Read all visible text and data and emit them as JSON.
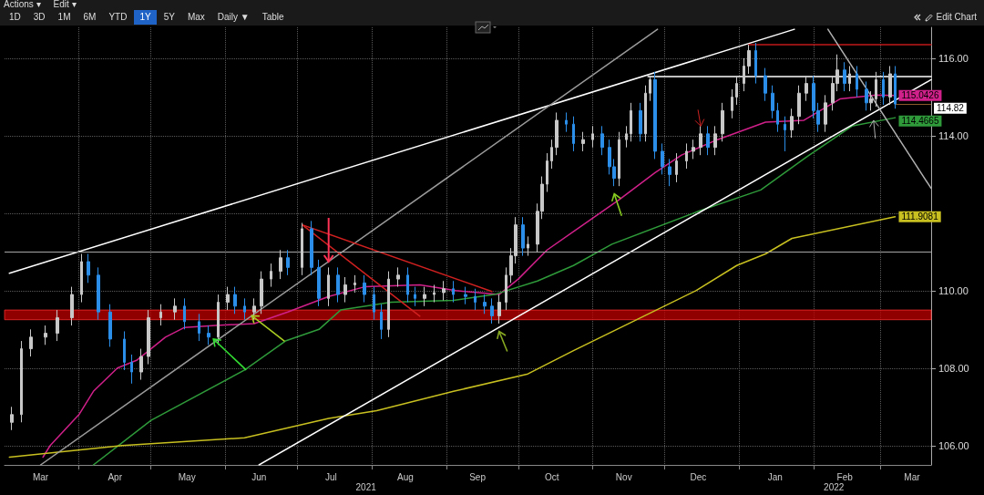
{
  "chart_data": {
    "type": "candlestick",
    "annotations": [
      "Actions ▾",
      "Edit ▾",
      "1D",
      "3D",
      "1M",
      "6M",
      "YTD",
      "1Y",
      "5Y",
      "Max",
      "Daily ▼",
      "Table",
      "Edit Chart",
      "2021",
      "2022"
    ],
    "xlim": [
      "2021-03-01",
      "2022-03-22"
    ],
    "xticks": [
      {
        "value": "2021-03-16",
        "label": "Mar"
      },
      {
        "value": "2021-04-01",
        "label": null
      },
      {
        "value": "2021-04-16",
        "label": "Apr"
      },
      {
        "value": "2021-05-01",
        "label": null
      },
      {
        "value": "2021-05-16",
        "label": "May"
      },
      {
        "value": "2021-06-01",
        "label": null
      },
      {
        "value": "2021-06-15",
        "label": "Jun"
      },
      {
        "value": "2021-07-01",
        "label": null
      },
      {
        "value": "2021-07-15",
        "label": "Jul"
      },
      {
        "value": "2021-08-01",
        "label": null
      },
      {
        "value": "2021-08-15",
        "label": "Aug"
      },
      {
        "value": "2021-09-01",
        "label": null
      },
      {
        "value": "2021-09-14",
        "label": "Sep"
      },
      {
        "value": "2021-10-01",
        "label": null
      },
      {
        "value": "2021-10-15",
        "label": "Oct"
      },
      {
        "value": "2021-11-01",
        "label": null
      },
      {
        "value": "2021-11-14",
        "label": "Nov"
      },
      {
        "value": "2021-12-01",
        "label": null
      },
      {
        "value": "2021-12-15",
        "label": "Dec"
      },
      {
        "value": "2022-01-01",
        "label": null
      },
      {
        "value": "2022-01-16",
        "label": "Jan"
      },
      {
        "value": "2022-02-01",
        "label": null
      },
      {
        "value": "2022-02-14",
        "label": "Feb"
      },
      {
        "value": "2022-03-01",
        "label": null
      },
      {
        "value": "2022-03-14",
        "label": "Mar"
      }
    ],
    "ylim": [
      105.5,
      116.8
    ],
    "yticks": [
      {
        "value": 106,
        "label": "106.00"
      },
      {
        "value": 108,
        "label": "108.00"
      },
      {
        "value": 110,
        "label": "110.00"
      },
      {
        "value": 112,
        "label": null
      },
      {
        "value": 114,
        "label": "114.00"
      },
      {
        "value": 116,
        "label": "116.00"
      }
    ],
    "grid": true,
    "marker": "none",
    "ref_lines": [
      {
        "axis": "y",
        "value": 111,
        "color": "#a6a6a6"
      },
      {
        "axis": "y",
        "value": 114.82,
        "label": "114.82",
        "color": "#8b5a2b"
      }
    ],
    "bands": [
      {
        "axis": "y",
        "from": 109.25,
        "to": 109.5,
        "color": "#c00000"
      }
    ],
    "series": [
      {
        "type": "candlestick",
        "x": [
          "2021-03-04",
          "2021-03-08",
          "2021-03-12",
          "2021-03-18",
          "2021-03-23",
          "2021-03-29",
          "2021-04-02",
          "2021-04-05",
          "2021-04-09",
          "2021-04-14",
          "2021-04-20",
          "2021-04-23",
          "2021-04-27",
          "2021-04-30",
          "2021-05-05",
          "2021-05-11",
          "2021-05-15",
          "2021-05-21",
          "2021-05-25",
          "2021-05-29",
          "2021-06-02",
          "2021-06-05",
          "2021-06-09",
          "2021-06-13",
          "2021-06-16",
          "2021-06-20",
          "2021-06-24",
          "2021-06-27",
          "2021-07-03",
          "2021-07-07",
          "2021-07-10",
          "2021-07-14",
          "2021-07-18",
          "2021-07-21",
          "2021-07-25",
          "2021-07-29",
          "2021-08-02",
          "2021-08-05",
          "2021-08-08",
          "2021-08-12",
          "2021-08-16",
          "2021-08-19",
          "2021-08-23",
          "2021-08-27",
          "2021-08-31",
          "2021-09-04",
          "2021-09-09",
          "2021-09-13",
          "2021-09-17",
          "2021-09-20",
          "2021-09-23",
          "2021-09-26",
          "2021-09-28",
          "2021-09-30",
          "2021-10-03",
          "2021-10-05",
          "2021-10-09",
          "2021-10-11",
          "2021-10-13",
          "2021-10-15",
          "2021-10-17",
          "2021-10-21",
          "2021-10-24",
          "2021-10-28",
          "2021-11-01",
          "2021-11-05",
          "2021-11-08",
          "2021-11-10",
          "2021-11-12",
          "2021-11-15",
          "2021-11-17",
          "2021-11-21",
          "2021-11-23",
          "2021-11-25",
          "2021-11-27",
          "2021-11-30",
          "2021-12-03",
          "2021-12-06",
          "2021-12-10",
          "2021-12-13",
          "2021-12-16",
          "2021-12-19",
          "2021-12-22",
          "2021-12-25",
          "2021-12-29",
          "2021-12-31",
          "2022-01-03",
          "2022-01-05",
          "2022-01-08",
          "2022-01-12",
          "2022-01-15",
          "2022-01-17",
          "2022-01-20",
          "2022-01-23",
          "2022-01-26",
          "2022-01-29",
          "2022-02-01",
          "2022-02-03",
          "2022-02-06",
          "2022-02-09",
          "2022-02-11",
          "2022-02-14",
          "2022-02-16",
          "2022-02-19",
          "2022-02-23",
          "2022-02-25",
          "2022-02-27",
          "2022-03-02",
          "2022-03-05",
          "2022-03-07"
        ],
        "ohlc": [
          [
            106.6,
            107.0,
            106.4,
            106.8
          ],
          [
            106.8,
            108.7,
            106.6,
            108.5
          ],
          [
            108.5,
            109.0,
            108.3,
            108.8
          ],
          [
            108.8,
            109.1,
            108.6,
            108.9
          ],
          [
            108.9,
            109.5,
            108.7,
            109.3
          ],
          [
            109.3,
            110.1,
            109.1,
            109.9
          ],
          [
            109.9,
            110.95,
            109.7,
            110.75
          ],
          [
            110.75,
            110.95,
            110.2,
            110.4
          ],
          [
            110.4,
            110.6,
            109.25,
            109.45
          ],
          [
            109.45,
            109.65,
            108.55,
            108.75
          ],
          [
            108.75,
            108.95,
            107.95,
            108.15
          ],
          [
            108.15,
            108.35,
            107.6,
            107.9
          ],
          [
            107.9,
            108.5,
            107.7,
            108.3
          ],
          [
            108.3,
            109.5,
            108.1,
            109.3
          ],
          [
            109.3,
            109.65,
            109.1,
            109.45
          ],
          [
            109.45,
            109.8,
            109.25,
            109.6
          ],
          [
            109.6,
            109.8,
            109.0,
            109.2
          ],
          [
            109.2,
            109.4,
            108.7,
            108.9
          ],
          [
            108.9,
            109.1,
            108.6,
            108.8
          ],
          [
            108.8,
            109.9,
            108.6,
            109.7
          ],
          [
            109.7,
            110.1,
            109.5,
            109.9
          ],
          [
            109.9,
            110.1,
            109.4,
            109.6
          ],
          [
            109.6,
            109.8,
            109.25,
            109.45
          ],
          [
            109.45,
            109.8,
            109.25,
            109.6
          ],
          [
            109.6,
            110.5,
            109.4,
            110.3
          ],
          [
            110.3,
            110.7,
            110.1,
            110.5
          ],
          [
            110.5,
            111.05,
            110.3,
            110.85
          ],
          [
            110.85,
            111.05,
            110.4,
            110.6
          ],
          [
            110.6,
            111.75,
            110.4,
            111.6
          ],
          [
            111.6,
            111.8,
            110.4,
            110.6
          ],
          [
            110.6,
            110.8,
            109.6,
            109.8
          ],
          [
            109.8,
            110.6,
            109.6,
            110.4
          ],
          [
            110.4,
            110.6,
            109.7,
            109.9
          ],
          [
            109.9,
            110.35,
            109.7,
            110.15
          ],
          [
            110.15,
            110.4,
            109.95,
            110.2
          ],
          [
            110.2,
            110.4,
            109.7,
            109.9
          ],
          [
            109.9,
            110.1,
            109.25,
            109.45
          ],
          [
            109.45,
            109.65,
            108.75,
            109.0
          ],
          [
            109.0,
            110.5,
            108.8,
            110.3
          ],
          [
            110.3,
            110.6,
            110.1,
            110.4
          ],
          [
            110.4,
            110.6,
            109.7,
            109.9
          ],
          [
            109.9,
            110.1,
            109.6,
            109.8
          ],
          [
            109.8,
            110.1,
            109.6,
            109.9
          ],
          [
            109.9,
            110.15,
            109.7,
            109.95
          ],
          [
            109.95,
            110.25,
            109.75,
            110.05
          ],
          [
            110.05,
            110.25,
            109.7,
            109.9
          ],
          [
            109.9,
            110.1,
            109.65,
            109.85
          ],
          [
            109.85,
            110.05,
            109.5,
            109.7
          ],
          [
            109.7,
            109.9,
            109.4,
            109.6
          ],
          [
            109.6,
            109.8,
            109.15,
            109.35
          ],
          [
            109.35,
            109.9,
            109.15,
            109.7
          ],
          [
            109.7,
            110.6,
            109.5,
            110.4
          ],
          [
            110.4,
            111.1,
            110.2,
            110.9
          ],
          [
            110.9,
            111.9,
            110.7,
            111.7
          ],
          [
            111.7,
            111.9,
            110.9,
            111.1
          ],
          [
            111.1,
            111.4,
            110.9,
            111.2
          ],
          [
            111.2,
            112.25,
            111.0,
            112.05
          ],
          [
            112.05,
            112.95,
            111.85,
            112.75
          ],
          [
            112.75,
            113.55,
            112.55,
            113.35
          ],
          [
            113.35,
            113.9,
            113.15,
            113.7
          ],
          [
            113.7,
            114.6,
            113.5,
            114.4
          ],
          [
            114.4,
            114.6,
            114.1,
            114.3
          ],
          [
            114.3,
            114.5,
            113.6,
            113.8
          ],
          [
            113.8,
            114.1,
            113.6,
            113.9
          ],
          [
            113.9,
            114.25,
            113.7,
            114.05
          ],
          [
            114.05,
            114.25,
            113.5,
            113.7
          ],
          [
            113.7,
            113.9,
            113.0,
            113.2
          ],
          [
            113.2,
            113.4,
            112.7,
            112.9
          ],
          [
            112.9,
            114.1,
            112.7,
            113.9
          ],
          [
            113.9,
            114.25,
            113.7,
            114.05
          ],
          [
            114.05,
            114.85,
            113.85,
            114.65
          ],
          [
            114.65,
            114.85,
            113.85,
            114.05
          ],
          [
            114.05,
            115.3,
            113.85,
            115.1
          ],
          [
            115.1,
            115.55,
            114.9,
            115.45
          ],
          [
            115.45,
            115.65,
            113.4,
            113.6
          ],
          [
            113.6,
            113.8,
            113.0,
            113.2
          ],
          [
            113.2,
            113.4,
            112.7,
            113.0
          ],
          [
            113.0,
            113.55,
            112.8,
            113.35
          ],
          [
            113.35,
            113.8,
            113.15,
            113.6
          ],
          [
            113.6,
            113.9,
            113.4,
            113.7
          ],
          [
            113.7,
            114.25,
            113.5,
            114.05
          ],
          [
            114.05,
            114.25,
            113.5,
            113.7
          ],
          [
            113.7,
            114.25,
            113.5,
            114.05
          ],
          [
            114.05,
            114.85,
            113.85,
            114.65
          ],
          [
            114.65,
            115.2,
            114.45,
            115.0
          ],
          [
            115.0,
            115.55,
            114.8,
            115.35
          ],
          [
            115.35,
            116.0,
            115.15,
            115.8
          ],
          [
            115.8,
            116.35,
            115.6,
            116.2
          ],
          [
            116.2,
            116.4,
            115.35,
            115.55
          ],
          [
            115.55,
            115.75,
            114.9,
            115.1
          ],
          [
            115.1,
            115.3,
            114.45,
            114.65
          ],
          [
            114.65,
            114.85,
            114.1,
            114.3
          ],
          [
            114.3,
            114.5,
            113.6,
            114.15
          ],
          [
            114.15,
            114.7,
            113.95,
            114.5
          ],
          [
            114.5,
            115.3,
            114.3,
            115.1
          ],
          [
            115.1,
            115.55,
            114.9,
            115.35
          ],
          [
            115.35,
            115.55,
            114.45,
            114.65
          ],
          [
            114.65,
            114.85,
            114.1,
            114.3
          ],
          [
            114.3,
            115.05,
            114.1,
            114.85
          ],
          [
            114.85,
            115.55,
            114.65,
            115.35
          ],
          [
            115.35,
            116.1,
            115.15,
            115.7
          ],
          [
            115.7,
            115.9,
            115.15,
            115.35
          ],
          [
            115.35,
            115.8,
            115.15,
            115.6
          ],
          [
            115.6,
            115.8,
            115.0,
            115.2
          ],
          [
            115.2,
            115.4,
            114.65,
            114.85
          ],
          [
            114.85,
            115.15,
            114.65,
            114.95
          ],
          [
            114.95,
            115.65,
            114.75,
            115.45
          ],
          [
            115.45,
            115.65,
            114.8,
            115.0
          ],
          [
            115.0,
            115.8,
            114.8,
            115.6
          ],
          [
            115.6,
            115.8,
            114.7,
            114.82
          ]
        ],
        "colors": [
          "#c8c8c8",
          "#c8c8c8",
          "#c8c8c8",
          "#c8c8c8",
          "#c8c8c8",
          "#c8c8c8",
          "#c8c8c8",
          "#2b8ee8",
          "#2b8ee8",
          "#2b8ee8",
          "#2b8ee8",
          "#2b8ee8",
          "#c8c8c8",
          "#c8c8c8",
          "#c8c8c8",
          "#c8c8c8",
          "#2b8ee8",
          "#2b8ee8",
          "#2b8ee8",
          "#c8c8c8",
          "#c8c8c8",
          "#2b8ee8",
          "#2b8ee8",
          "#c8c8c8",
          "#c8c8c8",
          "#c8c8c8",
          "#c8c8c8",
          "#2b8ee8",
          "#c8c8c8",
          "#2b8ee8",
          "#2b8ee8",
          "#c8c8c8",
          "#2b8ee8",
          "#c8c8c8",
          "#c8c8c8",
          "#2b8ee8",
          "#2b8ee8",
          "#2b8ee8",
          "#c8c8c8",
          "#c8c8c8",
          "#2b8ee8",
          "#2b8ee8",
          "#c8c8c8",
          "#c8c8c8",
          "#c8c8c8",
          "#2b8ee8",
          "#2b8ee8",
          "#2b8ee8",
          "#2b8ee8",
          "#2b8ee8",
          "#c8c8c8",
          "#c8c8c8",
          "#c8c8c8",
          "#c8c8c8",
          "#2b8ee8",
          "#c8c8c8",
          "#c8c8c8",
          "#c8c8c8",
          "#c8c8c8",
          "#c8c8c8",
          "#c8c8c8",
          "#2b8ee8",
          "#2b8ee8",
          "#c8c8c8",
          "#c8c8c8",
          "#2b8ee8",
          "#2b8ee8",
          "#2b8ee8",
          "#c8c8c8",
          "#c8c8c8",
          "#c8c8c8",
          "#2b8ee8",
          "#c8c8c8",
          "#c8c8c8",
          "#2b8ee8",
          "#2b8ee8",
          "#2b8ee8",
          "#c8c8c8",
          "#c8c8c8",
          "#c8c8c8",
          "#c8c8c8",
          "#2b8ee8",
          "#c8c8c8",
          "#c8c8c8",
          "#c8c8c8",
          "#c8c8c8",
          "#c8c8c8",
          "#c8c8c8",
          "#2b8ee8",
          "#2b8ee8",
          "#2b8ee8",
          "#2b8ee8",
          "#2b8ee8",
          "#c8c8c8",
          "#c8c8c8",
          "#c8c8c8",
          "#2b8ee8",
          "#2b8ee8",
          "#c8c8c8",
          "#c8c8c8",
          "#c8c8c8",
          "#2b8ee8",
          "#c8c8c8",
          "#2b8ee8",
          "#2b8ee8",
          "#c8c8c8",
          "#c8c8c8",
          "#2b8ee8",
          "#c8c8c8",
          "#2b8ee8"
        ]
      },
      {
        "type": "line",
        "color": "#d0208a",
        "x": [
          "2021-03-17",
          "2021-03-20",
          "2021-04-01",
          "2021-04-07",
          "2021-04-17",
          "2021-04-25",
          "2021-05-07",
          "2021-05-15",
          "2021-05-28",
          "2021-06-13",
          "2021-06-27",
          "2021-07-14",
          "2021-07-29",
          "2021-08-21",
          "2021-09-05",
          "2021-09-23",
          "2021-10-01",
          "2021-10-13",
          "2021-11-12",
          "2021-11-27",
          "2021-12-08",
          "2021-12-23",
          "2022-01-12",
          "2022-01-28",
          "2022-02-12",
          "2022-02-27",
          "2022-03-07"
        ],
        "values": [
          105.7,
          106.0,
          106.8,
          107.4,
          108.0,
          108.2,
          108.8,
          109.05,
          109.1,
          109.15,
          109.45,
          109.85,
          110.1,
          110.15,
          110.0,
          109.9,
          110.3,
          111.05,
          112.35,
          113.05,
          113.5,
          113.9,
          114.35,
          114.4,
          114.95,
          115.05,
          115.0426
        ],
        "value_labels": [
          null,
          null,
          null,
          null,
          null,
          null,
          null,
          null,
          null,
          null,
          null,
          null,
          null,
          null,
          null,
          null,
          null,
          null,
          null,
          null,
          null,
          null,
          null,
          null,
          null,
          null,
          "115.0426"
        ]
      },
      {
        "type": "line",
        "color": "#2e9a3a",
        "x": [
          "2021-04-07",
          "2021-05-01",
          "2021-06-09",
          "2021-06-26",
          "2021-07-10",
          "2021-07-19",
          "2021-08-09",
          "2021-09-04",
          "2021-09-21",
          "2021-10-09",
          "2021-10-24",
          "2021-11-09",
          "2021-12-15",
          "2022-01-10",
          "2022-01-29",
          "2022-02-17",
          "2022-03-07"
        ],
        "values": [
          105.5,
          106.65,
          107.95,
          108.7,
          109.0,
          109.5,
          109.7,
          109.75,
          109.9,
          110.25,
          110.65,
          111.2,
          112.05,
          112.6,
          113.45,
          114.25,
          114.4665
        ],
        "value_labels": [
          null,
          null,
          null,
          null,
          null,
          null,
          null,
          null,
          null,
          null,
          null,
          null,
          null,
          null,
          null,
          null,
          "114.4665"
        ]
      },
      {
        "type": "line",
        "color": "#c8c020",
        "x": [
          "2021-03-03",
          "2021-04-19",
          "2021-06-09",
          "2021-07-14",
          "2021-08-03",
          "2021-09-04",
          "2021-10-05",
          "2021-10-24",
          "2021-12-14",
          "2021-12-31",
          "2022-01-12",
          "2022-01-23",
          "2022-03-07"
        ],
        "values": [
          105.7,
          106.0,
          106.2,
          106.7,
          106.9,
          107.4,
          107.85,
          108.45,
          110.0,
          110.65,
          110.95,
          111.35,
          111.9081
        ],
        "value_labels": [
          null,
          null,
          null,
          null,
          null,
          null,
          null,
          null,
          null,
          null,
          null,
          null,
          "111.9081"
        ]
      },
      {
        "type": "line",
        "color": "#ffffff",
        "x": [
          "2021-03-03",
          "2022-01-24"
        ],
        "values": [
          110.45,
          116.75
        ]
      },
      {
        "type": "line",
        "color": "#ffffff",
        "x": [
          "2021-06-15",
          "2022-03-22"
        ],
        "values": [
          105.5,
          115.45
        ]
      },
      {
        "type": "line",
        "color": "#9a9a9a",
        "x": [
          "2021-03-16",
          "2021-11-28"
        ],
        "values": [
          105.5,
          116.75
        ]
      },
      {
        "type": "line",
        "color": "#ffffff",
        "x": [
          "2021-11-24",
          "2022-03-22"
        ],
        "values": [
          115.53,
          115.53
        ]
      },
      {
        "type": "line",
        "color": "#c01818",
        "x": [
          "2022-01-05",
          "2022-03-22"
        ],
        "values": [
          116.35,
          116.35
        ]
      },
      {
        "type": "line",
        "color": "#b0b0b0",
        "x": [
          "2022-02-07",
          "2022-03-22"
        ],
        "values": [
          116.75,
          112.64
        ]
      },
      {
        "type": "line",
        "color": "#d02020",
        "x": [
          "2021-07-03",
          "2021-09-20"
        ],
        "values": [
          111.7,
          109.98
        ]
      },
      {
        "type": "line",
        "color": "#d02020",
        "x": [
          "2021-07-03",
          "2021-08-21"
        ],
        "values": [
          111.7,
          109.34
        ]
      }
    ]
  }
}
